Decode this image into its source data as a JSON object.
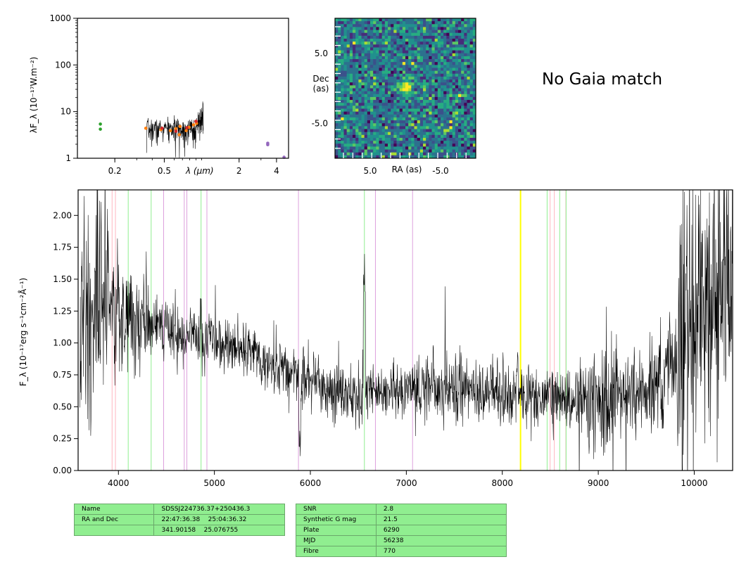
{
  "colors": {
    "balmer_lines": "#90ee90",
    "ca_lines": "#ffb6c1",
    "metal_lines": "#dda0dd",
    "sky_line": "#ffff00",
    "spectrum": "#000000",
    "table_fill": "#90ee90"
  },
  "gaia_message": "No Gaia match",
  "chart_data": [
    {
      "type": "scatter",
      "scale": "log-log",
      "ylabel": "λF_λ (10⁻¹⁷W.m⁻²)",
      "xlabel": "λ (μm)",
      "xlim": [
        0.1,
        5.0
      ],
      "ylim": [
        1,
        1000
      ],
      "x_ticks": [
        {
          "value": 0.2,
          "label": "0.2"
        },
        {
          "value": 0.5,
          "label": "0.5"
        },
        {
          "value": 2,
          "label": "2"
        },
        {
          "value": 4,
          "label": "4"
        }
      ],
      "y_ticks": [
        {
          "value": 1,
          "label": "1"
        },
        {
          "value": 10,
          "label": "10"
        },
        {
          "value": 100,
          "label": "100"
        },
        {
          "value": 1000,
          "label": "1000"
        }
      ],
      "series": [
        {
          "color": "#2ca02c",
          "points": [
            [
              0.153,
              4.2
            ],
            [
              0.153,
              5.4
            ]
          ]
        },
        {
          "color": "#ff7f0e",
          "points": [
            [
              0.355,
              4.4
            ],
            [
              0.47,
              4.1
            ],
            [
              0.56,
              3.9
            ],
            [
              0.62,
              4.3
            ],
            [
              0.66,
              3.2
            ],
            [
              0.67,
              4.8
            ],
            [
              0.75,
              3.9
            ],
            [
              0.79,
              4.6
            ],
            [
              0.86,
              5.2
            ],
            [
              0.91,
              5.6
            ]
          ]
        },
        {
          "color": "#d62728",
          "points": [
            [
              0.48,
              4.4
            ],
            [
              0.62,
              3.8
            ],
            [
              0.76,
              4.5
            ],
            [
              0.9,
              6.2
            ]
          ]
        },
        {
          "color": "#9467bd",
          "points": [
            [
              3.4,
              1.95
            ],
            [
              3.4,
              2.1
            ],
            [
              4.6,
              1.05
            ]
          ]
        }
      ],
      "sed_spectrum": {
        "x_range": [
          0.36,
          1.03
        ],
        "typical_flux": 4.3
      }
    },
    {
      "type": "heatmap",
      "xlabel": "RA (as)",
      "ylabel": "Dec\n(as)",
      "extent": [
        10,
        -10,
        -10,
        10
      ],
      "x_ticks": [
        {
          "value": 5,
          "label": "5.0"
        },
        {
          "value": -5,
          "label": "-5.0"
        }
      ],
      "y_ticks": [
        {
          "value": 5,
          "label": "5.0"
        },
        {
          "value": -5,
          "label": "-5.0"
        }
      ],
      "source": {
        "ra": 0.0,
        "dec": 0.3
      }
    },
    {
      "type": "line",
      "ylabel": "F_λ (10⁻¹⁷erg s⁻¹cm⁻²Å⁻¹)",
      "xlim": [
        3580,
        10400
      ],
      "ylim": [
        0,
        2.2
      ],
      "x_ticks": [
        4000,
        5000,
        6000,
        7000,
        8000,
        9000,
        10000
      ],
      "y_ticks": [
        "0.00",
        "0.25",
        "0.50",
        "0.75",
        "1.00",
        "1.25",
        "1.50",
        "1.75",
        "2.00"
      ],
      "continuum": [
        [
          3600,
          1.15
        ],
        [
          3800,
          1.3
        ],
        [
          4000,
          1.22
        ],
        [
          4300,
          1.18
        ],
        [
          4600,
          1.08
        ],
        [
          5000,
          1.0
        ],
        [
          5300,
          0.95
        ],
        [
          5600,
          0.84
        ],
        [
          6000,
          0.72
        ],
        [
          6300,
          0.62
        ],
        [
          6600,
          0.6
        ],
        [
          7000,
          0.62
        ],
        [
          7500,
          0.64
        ],
        [
          8000,
          0.62
        ],
        [
          8500,
          0.56
        ],
        [
          9000,
          0.55
        ],
        [
          9500,
          0.6
        ],
        [
          9800,
          0.85
        ],
        [
          10100,
          1.25
        ],
        [
          10400,
          1.6
        ]
      ],
      "spectral_lines": [
        {
          "x": 3934,
          "color": "#ffb6c1",
          "width": 1
        },
        {
          "x": 3969,
          "color": "#ffb6c1",
          "width": 1
        },
        {
          "x": 4102,
          "color": "#90ee90",
          "width": 1
        },
        {
          "x": 4341,
          "color": "#90ee90",
          "width": 1
        },
        {
          "x": 4471,
          "color": "#dda0dd",
          "width": 1
        },
        {
          "x": 4686,
          "color": "#dda0dd",
          "width": 1
        },
        {
          "x": 4713,
          "color": "#dda0dd",
          "width": 1
        },
        {
          "x": 4861,
          "color": "#90ee90",
          "width": 1
        },
        {
          "x": 4922,
          "color": "#dda0dd",
          "width": 1
        },
        {
          "x": 5876,
          "color": "#dda0dd",
          "width": 1
        },
        {
          "x": 6563,
          "color": "#90ee90",
          "width": 1
        },
        {
          "x": 6678,
          "color": "#dda0dd",
          "width": 1
        },
        {
          "x": 7065,
          "color": "#dda0dd",
          "width": 1
        },
        {
          "x": 8190,
          "color": "#ffff00",
          "width": 2
        },
        {
          "x": 8467,
          "color": "#90ee90",
          "width": 1
        },
        {
          "x": 8498,
          "color": "#ffb6c1",
          "width": 1
        },
        {
          "x": 8542,
          "color": "#ffb6c1",
          "width": 1
        },
        {
          "x": 8598,
          "color": "#90ee90",
          "width": 1
        },
        {
          "x": 8662,
          "color": "#ffb6c1",
          "width": 1
        },
        {
          "x": 8665,
          "color": "#90ee90",
          "width": 1
        }
      ]
    }
  ],
  "info_tables": {
    "left": [
      [
        "Name",
        "SDSSJ224736.37+250436.3"
      ],
      [
        "RA and Dec",
        "22:47:36.38    25:04:36.32"
      ],
      [
        "",
        "341.90158    25.076755"
      ]
    ],
    "right": [
      [
        "SNR",
        "2.8"
      ],
      [
        "Synthetic G mag",
        "21.5"
      ],
      [
        "Plate",
        "6290"
      ],
      [
        "MJD",
        "56238"
      ],
      [
        "Fibre",
        "770"
      ]
    ]
  }
}
